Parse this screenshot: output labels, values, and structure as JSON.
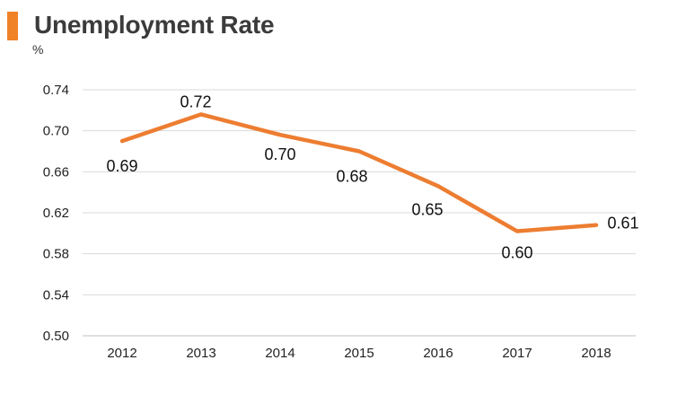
{
  "header": {
    "title": "Unemployment Rate",
    "unit": "%"
  },
  "colors": {
    "accent": "#f08228",
    "line": "#ed7d31",
    "grid": "#d9d9d9"
  },
  "chart_data": {
    "type": "line",
    "title": "Unemployment Rate",
    "ylabel": "%",
    "xlabel": "",
    "x": [
      "2012",
      "2013",
      "2014",
      "2015",
      "2016",
      "2017",
      "2018"
    ],
    "series": [
      {
        "values": [
          0.69,
          0.716,
          0.696,
          0.68,
          0.646,
          0.602,
          0.608
        ],
        "labels": [
          "0.69",
          "0.72",
          "0.70",
          "0.68",
          "0.65",
          "0.60",
          "0.61"
        ]
      }
    ],
    "ylim": [
      0.5,
      0.74
    ],
    "yticks": [
      0.5,
      0.54,
      0.58,
      0.62,
      0.66,
      0.7,
      0.74
    ],
    "ytick_labels": [
      "0.50",
      "0.54",
      "0.58",
      "0.62",
      "0.66",
      "0.70",
      "0.74"
    ],
    "grid": true,
    "legend": "none"
  }
}
